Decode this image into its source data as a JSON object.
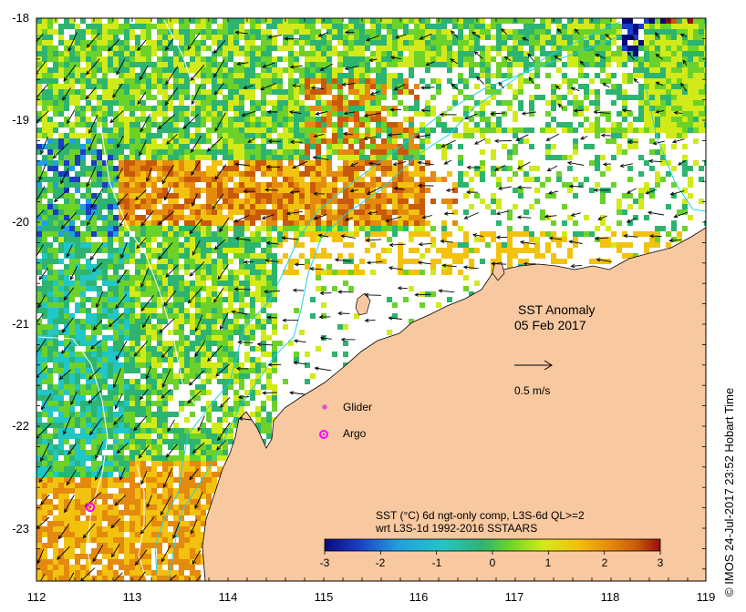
{
  "map": {
    "title_line1": "SST Anomaly",
    "title_line2": "05 Feb 2017",
    "scale_label": "0.5 m/s",
    "legend": {
      "glider_label": "Glider",
      "argo_label": "Argo",
      "glider_color": "#e040e0",
      "argo_color": "#ff00ff"
    },
    "x_ticks": [
      "112",
      "113",
      "114",
      "115",
      "116",
      "117",
      "118",
      "119"
    ],
    "y_ticks": [
      "-18",
      "-19",
      "-20",
      "-21",
      "-22",
      "-23"
    ],
    "colorbar": {
      "caption_line1": "SST (°C) 6d ngt-only comp, L3S-6d QL>=2",
      "caption_line2": "wrt L3S-1d 1992-2016 SSTAARS",
      "ticks": [
        "-3",
        "-2",
        "-1",
        "0",
        "1",
        "2",
        "3"
      ],
      "min": -3,
      "max": 3
    },
    "credit": "© IMOS 24-Jul-2017 23:52 Hobart Time",
    "colors": {
      "land": "#f8c8a0",
      "anomaly_palette": [
        "#0a0a7a",
        "#1a3cc8",
        "#1fa0e0",
        "#21c6c6",
        "#2cb470",
        "#6cd22a",
        "#d2ea1a",
        "#f2c20e",
        "#e48a0e",
        "#c85a0a",
        "#9a0e0e"
      ]
    }
  }
}
